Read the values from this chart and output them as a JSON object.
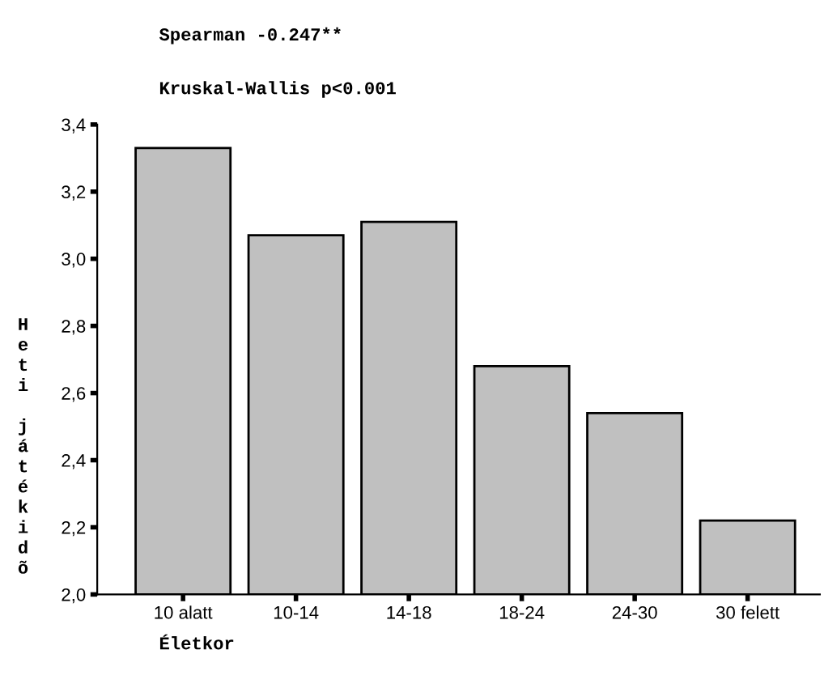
{
  "chart_data": {
    "type": "bar",
    "title": "Spearman -0.247**",
    "subtitle": "Kruskal-Wallis p<0.001",
    "xlabel": "Életkor",
    "ylabel": "Heti játékidõ",
    "categories": [
      "10 alatt",
      "10-14",
      "14-18",
      "18-24",
      "24-30",
      "30 felett"
    ],
    "values": [
      3.33,
      3.07,
      3.11,
      2.68,
      2.54,
      2.22
    ],
    "color": "#c0c0c0",
    "ylim": [
      2.0,
      3.4
    ],
    "yticks": [
      {
        "value": 2.0,
        "label": "2,0"
      },
      {
        "value": 2.2,
        "label": "2,2"
      },
      {
        "value": 2.4,
        "label": "2,4"
      },
      {
        "value": 2.6,
        "label": "2,6"
      },
      {
        "value": 2.8,
        "label": "2,8"
      },
      {
        "value": 3.0,
        "label": "3,0"
      },
      {
        "value": 3.2,
        "label": "3,2"
      },
      {
        "value": 3.4,
        "label": "3,4"
      }
    ],
    "grid": false
  }
}
